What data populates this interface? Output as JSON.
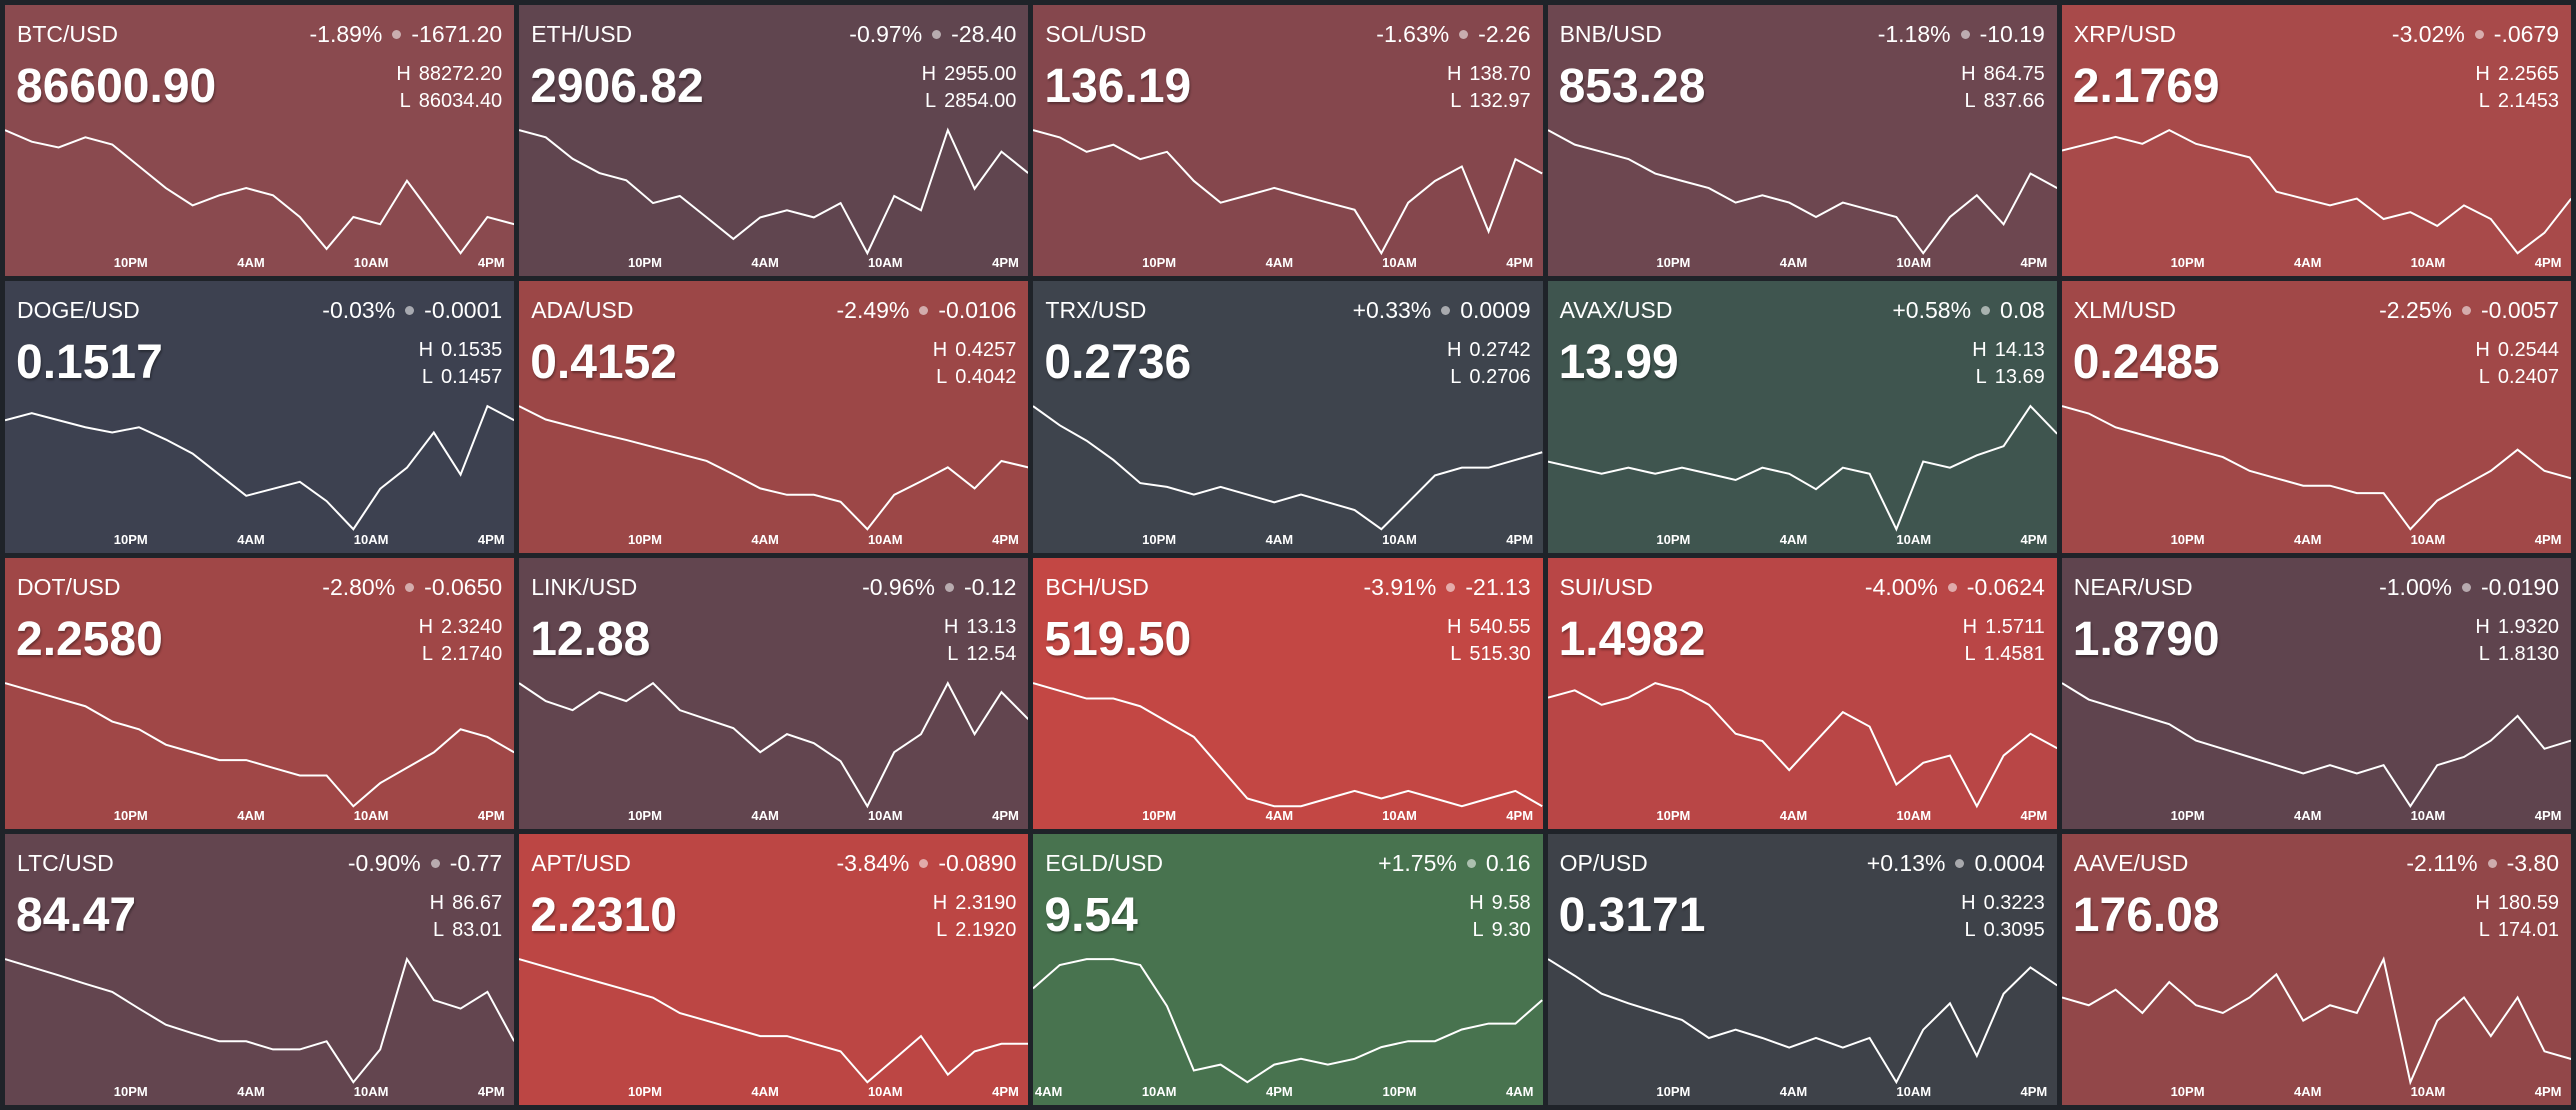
{
  "labels": {
    "high": "H",
    "low": "L"
  },
  "tiles": [
    {
      "symbol": "BTC/USD",
      "change_pct": "-1.89%",
      "change": "-1671.20",
      "price": "86600.90",
      "high": "88272.20",
      "low": "86034.40",
      "color": "#8a4a4f",
      "time_labels": [
        "10PM",
        "4AM",
        "10AM",
        "4PM"
      ],
      "sparkline": [
        88048,
        87869,
        87780,
        87937,
        87825,
        87489,
        87153,
        86885,
        87042,
        87153,
        87042,
        86706,
        86213,
        86706,
        86594,
        87265,
        86706,
        86146,
        86706,
        86594
      ]
    },
    {
      "symbol": "ETH/USD",
      "change_pct": "-0.97%",
      "change": "-28.40",
      "price": "2906.82",
      "high": "2955.00",
      "low": "2854.00",
      "color": "#60454f",
      "time_labels": [
        "10PM",
        "4AM",
        "10AM",
        "4PM"
      ],
      "sparkline": [
        2945,
        2940,
        2925,
        2915,
        2910,
        2894,
        2899,
        2884,
        2869,
        2884,
        2889,
        2884,
        2894,
        2859,
        2899,
        2889,
        2945,
        2904,
        2930,
        2915
      ]
    },
    {
      "symbol": "SOL/USD",
      "change_pct": "-1.63%",
      "change": "-2.26",
      "price": "136.19",
      "high": "138.70",
      "low": "132.97",
      "color": "#85474d",
      "time_labels": [
        "10PM",
        "4AM",
        "10AM",
        "4PM"
      ],
      "sparkline": [
        138.13,
        137.84,
        137.27,
        137.55,
        136.98,
        137.27,
        136.12,
        135.26,
        135.55,
        135.84,
        135.55,
        135.26,
        134.98,
        133.26,
        135.26,
        136.12,
        136.69,
        134.12,
        136.98,
        136.41
      ]
    },
    {
      "symbol": "BNB/USD",
      "change_pct": "-1.18%",
      "change": "-10.19",
      "price": "853.28",
      "high": "864.75",
      "low": "837.66",
      "color": "#6d4750",
      "time_labels": [
        "10PM",
        "4AM",
        "10AM",
        "4PM"
      ],
      "sparkline": [
        863.4,
        860.69,
        859.33,
        857.98,
        855.27,
        853.91,
        852.56,
        849.85,
        851.21,
        849.85,
        847.14,
        849.85,
        848.5,
        847.14,
        840.37,
        847.14,
        851.21,
        845.79,
        855.27,
        852.56
      ]
    },
    {
      "symbol": "XRP/USD",
      "change_pct": "-3.02%",
      "change": "-.0679",
      "price": "2.1769",
      "high": "2.2565",
      "low": "2.1453",
      "color": "#a84a4a",
      "time_labels": [
        "10PM",
        "4AM",
        "10AM",
        "4PM"
      ],
      "sparkline": [
        2.2343,
        2.2398,
        2.2454,
        2.2398,
        2.2509,
        2.2398,
        2.2343,
        2.2287,
        2.2009,
        2.1953,
        2.1898,
        2.1953,
        2.1787,
        2.1842,
        2.1731,
        2.1898,
        2.1787,
        2.1509,
        2.1675,
        2.1953
      ]
    },
    {
      "symbol": "DOGE/USD",
      "change_pct": "-0.03%",
      "change": "-0.0001",
      "price": "0.1517",
      "high": "0.1535",
      "low": "0.1457",
      "color": "#3d4150",
      "time_labels": [
        "10PM",
        "4AM",
        "10AM",
        "4PM"
      ],
      "sparkline": [
        0.1523,
        0.1527,
        0.1523,
        0.1519,
        0.1516,
        0.1519,
        0.1512,
        0.1504,
        0.1492,
        0.148,
        0.1484,
        0.1488,
        0.1477,
        0.1461,
        0.1484,
        0.1496,
        0.1516,
        0.1492,
        0.1531,
        0.1523
      ]
    },
    {
      "symbol": "ADA/USD",
      "change_pct": "-2.49%",
      "change": "-0.0106",
      "price": "0.4152",
      "high": "0.4257",
      "low": "0.4042",
      "color": "#9c4747",
      "time_labels": [
        "10PM",
        "4AM",
        "10AM",
        "4PM"
      ],
      "sparkline": [
        0.4246,
        0.4225,
        0.4214,
        0.4203,
        0.4193,
        0.4182,
        0.4171,
        0.416,
        0.4139,
        0.4117,
        0.4107,
        0.4107,
        0.4096,
        0.4053,
        0.4107,
        0.4128,
        0.415,
        0.4117,
        0.416,
        0.415
      ]
    },
    {
      "symbol": "TRX/USD",
      "change_pct": "+0.33%",
      "change": "0.0009",
      "price": "0.2736",
      "high": "0.2742",
      "low": "0.2706",
      "color": "#3e444d",
      "time_labels": [
        "10PM",
        "4AM",
        "10AM",
        "4PM"
      ],
      "sparkline": [
        0.274,
        0.2735,
        0.2731,
        0.2726,
        0.272,
        0.2719,
        0.2717,
        0.2719,
        0.2717,
        0.2715,
        0.2717,
        0.2715,
        0.2713,
        0.2708,
        0.2715,
        0.2722,
        0.2724,
        0.2724,
        0.2726,
        0.2728
      ]
    },
    {
      "symbol": "AVAX/USD",
      "change_pct": "+0.58%",
      "change": "0.08",
      "price": "13.99",
      "high": "14.13",
      "low": "13.69",
      "color": "#3f554f",
      "time_labels": [
        "10PM",
        "4AM",
        "10AM",
        "4PM"
      ],
      "sparkline": [
        13.93,
        13.91,
        13.89,
        13.91,
        13.89,
        13.91,
        13.89,
        13.87,
        13.91,
        13.89,
        13.84,
        13.91,
        13.89,
        13.71,
        13.93,
        13.91,
        13.95,
        13.98,
        14.11,
        14.02
      ]
    },
    {
      "symbol": "XLM/USD",
      "change_pct": "-2.25%",
      "change": "-0.0057",
      "price": "0.2485",
      "high": "0.2544",
      "low": "0.2407",
      "color": "#a14848",
      "time_labels": [
        "10PM",
        "4AM",
        "10AM",
        "4PM"
      ],
      "sparkline": [
        0.253,
        0.2523,
        0.251,
        0.2503,
        0.2496,
        0.2489,
        0.2482,
        0.2469,
        0.2462,
        0.2455,
        0.2455,
        0.2448,
        0.2448,
        0.2414,
        0.2441,
        0.2455,
        0.2469,
        0.2489,
        0.2469,
        0.2462
      ]
    },
    {
      "symbol": "DOT/USD",
      "change_pct": "-2.80%",
      "change": "-0.0650",
      "price": "2.2580",
      "high": "2.3240",
      "low": "2.1740",
      "color": "#a04747",
      "time_labels": [
        "10PM",
        "4AM",
        "10AM",
        "4PM"
      ],
      "sparkline": [
        2.309,
        2.3015,
        2.294,
        2.2865,
        2.2715,
        2.264,
        2.249,
        2.2415,
        2.234,
        2.234,
        2.2265,
        2.219,
        2.219,
        2.189,
        2.2115,
        2.2265,
        2.2415,
        2.264,
        2.2565,
        2.2415
      ]
    },
    {
      "symbol": "LINK/USD",
      "change_pct": "-0.96%",
      "change": "-0.12",
      "price": "12.88",
      "high": "13.13",
      "low": "12.54",
      "color": "#62454f",
      "time_labels": [
        "10PM",
        "4AM",
        "10AM",
        "4PM"
      ],
      "sparkline": [
        13.01,
        12.95,
        12.92,
        12.98,
        12.95,
        13.01,
        12.92,
        12.89,
        12.86,
        12.78,
        12.84,
        12.81,
        12.75,
        12.6,
        12.78,
        12.84,
        13.01,
        12.84,
        12.98,
        12.89
      ]
    },
    {
      "symbol": "BCH/USD",
      "change_pct": "-3.91%",
      "change": "-21.13",
      "price": "519.50",
      "high": "540.55",
      "low": "515.30",
      "color": "#c34744",
      "time_labels": [
        "10PM",
        "4AM",
        "10AM",
        "4PM"
      ],
      "sparkline": [
        538.03,
        536.76,
        535.5,
        535.5,
        534.24,
        531.71,
        529.19,
        524.14,
        519.09,
        517.83,
        517.83,
        519.09,
        520.35,
        519.09,
        520.35,
        519.09,
        517.83,
        519.09,
        520.35,
        517.83
      ]
    },
    {
      "symbol": "SUI/USD",
      "change_pct": "-4.00%",
      "change": "-0.0624",
      "price": "1.4982",
      "high": "1.5711",
      "low": "1.4581",
      "color": "#b94646",
      "time_labels": [
        "10PM",
        "4AM",
        "10AM",
        "4PM"
      ],
      "sparkline": [
        1.5485,
        1.5542,
        1.5429,
        1.5485,
        1.5598,
        1.5542,
        1.5429,
        1.5203,
        1.5146,
        1.492,
        1.5146,
        1.5372,
        1.5259,
        1.4807,
        1.4977,
        1.5033,
        1.4638,
        1.5033,
        1.5203,
        1.509
      ]
    },
    {
      "symbol": "NEAR/USD",
      "change_pct": "-1.00%",
      "change": "-0.0190",
      "price": "1.8790",
      "high": "1.9320",
      "low": "1.8130",
      "color": "#5f444e",
      "time_labels": [
        "10PM",
        "4AM",
        "10AM",
        "4PM"
      ],
      "sparkline": [
        1.9142,
        1.9023,
        1.8963,
        1.8904,
        1.8844,
        1.8725,
        1.8666,
        1.8606,
        1.8547,
        1.8487,
        1.8547,
        1.8487,
        1.8547,
        1.8249,
        1.8547,
        1.8606,
        1.8725,
        1.8904,
        1.8666,
        1.8725
      ]
    },
    {
      "symbol": "LTC/USD",
      "change_pct": "-0.90%",
      "change": "-0.77",
      "price": "84.47",
      "high": "86.67",
      "low": "83.01",
      "color": "#63454f",
      "time_labels": [
        "10PM",
        "4AM",
        "10AM",
        "4PM"
      ],
      "sparkline": [
        86.12,
        85.94,
        85.76,
        85.57,
        85.39,
        85.02,
        84.66,
        84.47,
        84.29,
        84.29,
        84.11,
        84.11,
        84.29,
        83.38,
        84.11,
        86.12,
        85.21,
        85.02,
        85.39,
        84.29
      ]
    },
    {
      "symbol": "APT/USD",
      "change_pct": "-3.84%",
      "change": "-0.0890",
      "price": "2.2310",
      "high": "2.3190",
      "low": "2.1920",
      "color": "#bc4644",
      "time_labels": [
        "10PM",
        "4AM",
        "10AM",
        "4PM"
      ],
      "sparkline": [
        2.3,
        2.2936,
        2.2873,
        2.2809,
        2.2746,
        2.2682,
        2.2555,
        2.2492,
        2.2428,
        2.2365,
        2.2365,
        2.2301,
        2.2238,
        2.1984,
        2.2174,
        2.2365,
        2.2047,
        2.2238,
        2.2301,
        2.2301
      ]
    },
    {
      "symbol": "EGLD/USD",
      "change_pct": "+1.75%",
      "change": "0.16",
      "price": "9.54",
      "high": "9.58",
      "low": "9.30",
      "color": "#48734f",
      "time_labels": [
        "4AM",
        "10AM",
        "4PM",
        "10PM",
        "4AM"
      ],
      "sparkline": [
        9.5,
        9.54,
        9.55,
        9.55,
        9.54,
        9.47,
        9.36,
        9.37,
        9.34,
        9.37,
        9.38,
        9.37,
        9.38,
        9.4,
        9.41,
        9.41,
        9.43,
        9.44,
        9.44,
        9.48
      ]
    },
    {
      "symbol": "OP/USD",
      "change_pct": "+0.13%",
      "change": "0.0004",
      "price": "0.3171",
      "high": "0.3223",
      "low": "0.3095",
      "color": "#3e4249",
      "time_labels": [
        "10PM",
        "4AM",
        "10AM",
        "4PM"
      ],
      "sparkline": [
        0.3197,
        0.3185,
        0.3172,
        0.3165,
        0.3159,
        0.3153,
        0.314,
        0.3146,
        0.314,
        0.3133,
        0.314,
        0.3133,
        0.314,
        0.3108,
        0.3146,
        0.3165,
        0.3127,
        0.3172,
        0.3191,
        0.3178
      ]
    },
    {
      "symbol": "AAVE/USD",
      "change_pct": "-2.11%",
      "change": "-3.80",
      "price": "176.08",
      "high": "180.59",
      "low": "174.01",
      "color": "#924749",
      "time_labels": [
        "10PM",
        "4AM",
        "10AM",
        "4PM"
      ],
      "sparkline": [
        177.96,
        177.63,
        178.29,
        177.3,
        178.62,
        177.63,
        177.3,
        177.96,
        178.95,
        176.97,
        177.63,
        177.3,
        179.6,
        174.34,
        176.97,
        177.96,
        176.31,
        177.96,
        175.66,
        175.33
      ]
    }
  ]
}
